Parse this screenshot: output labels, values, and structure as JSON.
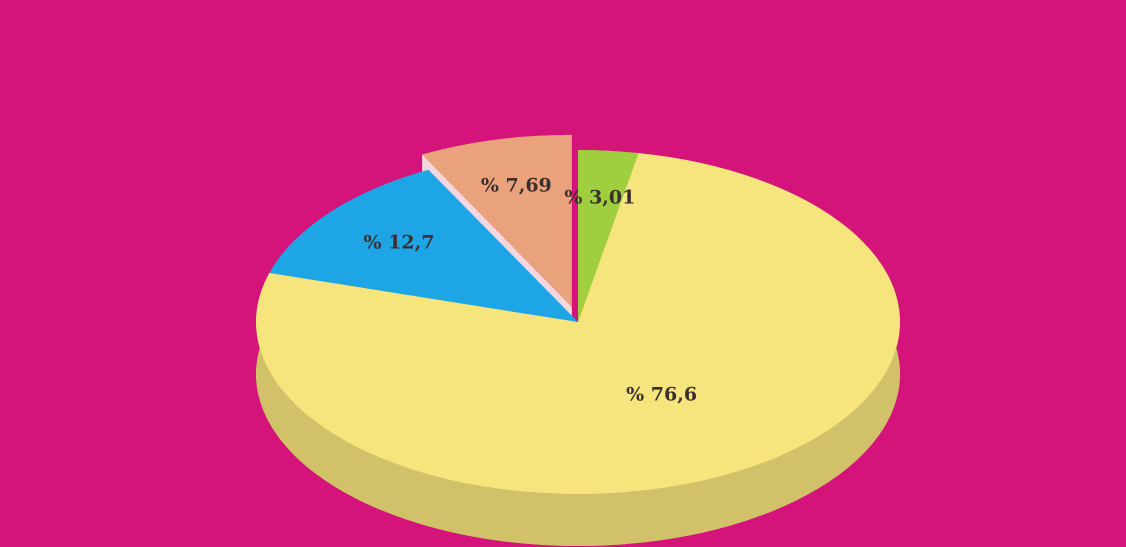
{
  "chart_data": {
    "type": "pie",
    "categories": [
      null,
      null,
      null,
      null
    ],
    "values": [
      3.01,
      76.6,
      12.7,
      7.69
    ],
    "value_labels": [
      "% 3,01",
      "% 76,6",
      "% 12,7",
      "% 7,69"
    ],
    "colors": [
      "#9fce3e",
      "#f6e47c",
      "#1ea5e6",
      "#eaa27c"
    ],
    "exploded": [
      false,
      false,
      false,
      true
    ]
  }
}
